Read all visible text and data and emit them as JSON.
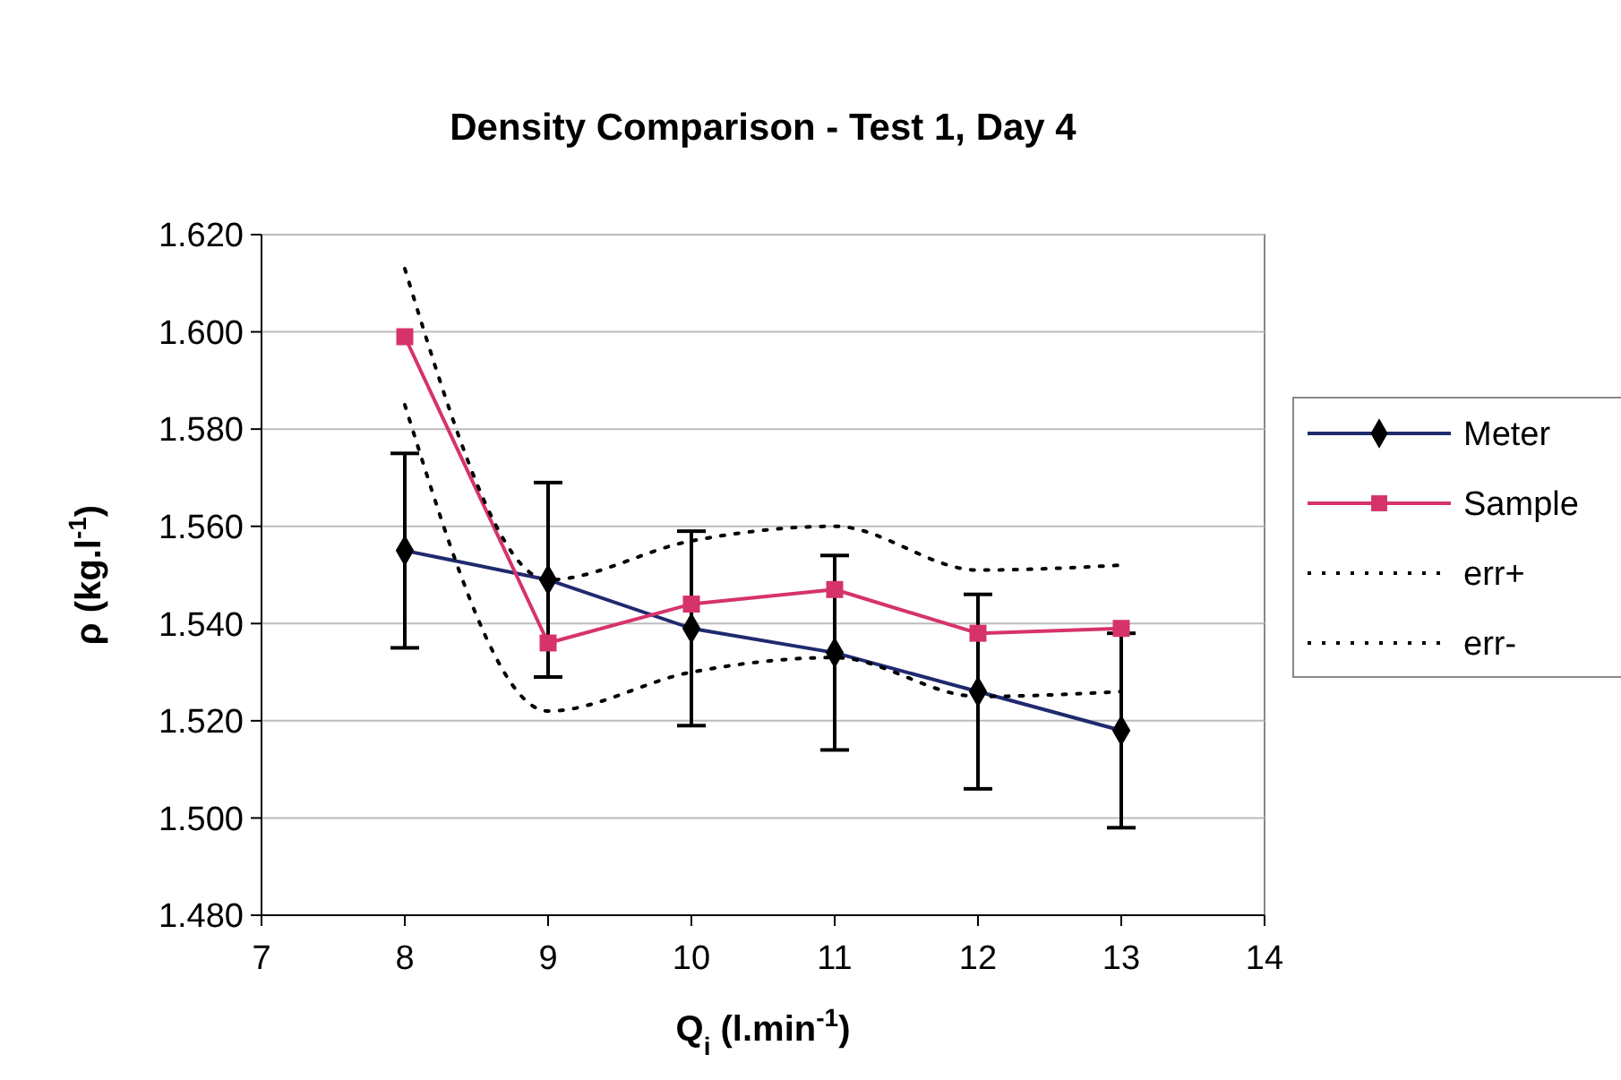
{
  "chart_data": {
    "type": "line",
    "title": "Density Comparison - Test 1, Day 4",
    "xlabel": "Q$_{i}$ (l.min$^{-1}$)",
    "ylabel": "ρ (kg.l$^{-1}$)",
    "x": [
      8,
      9,
      10,
      11,
      12,
      13
    ],
    "series": [
      {
        "name": "Meter",
        "color": "#1f2a6e",
        "values": [
          1.555,
          1.549,
          1.539,
          1.534,
          1.526,
          1.518
        ],
        "errors": [
          0.02,
          0.02,
          0.02,
          0.02,
          0.02,
          0.02
        ],
        "marker": "diamond",
        "line_style": "solid"
      },
      {
        "name": "Sample",
        "color": "#d6336b",
        "values": [
          1.599,
          1.536,
          1.544,
          1.547,
          1.538,
          1.539
        ],
        "marker": "square",
        "line_style": "solid"
      },
      {
        "name": "err+",
        "color": "#000000",
        "values": [
          1.613,
          1.549,
          1.557,
          1.56,
          1.551,
          1.552
        ],
        "marker": "none",
        "line_style": "dotted"
      },
      {
        "name": "err-",
        "color": "#000000",
        "values": [
          1.585,
          1.522,
          1.53,
          1.533,
          1.525,
          1.526
        ],
        "marker": "none",
        "line_style": "dotted"
      }
    ],
    "xlim": [
      7,
      14
    ],
    "xticks": [
      7,
      8,
      9,
      10,
      11,
      12,
      13,
      14
    ],
    "ylim": [
      1.48,
      1.62
    ],
    "yticks": [
      {
        "value": 1.48,
        "label": "1.480"
      },
      {
        "value": 1.5,
        "label": "1.500"
      },
      {
        "value": 1.52,
        "label": "1.520"
      },
      {
        "value": 1.54,
        "label": "1.540"
      },
      {
        "value": 1.56,
        "label": "1.560"
      },
      {
        "value": 1.58,
        "label": "1.580"
      },
      {
        "value": 1.6,
        "label": "1.600"
      },
      {
        "value": 1.62,
        "label": "1.620"
      }
    ],
    "grid": "y",
    "legend": "right"
  }
}
